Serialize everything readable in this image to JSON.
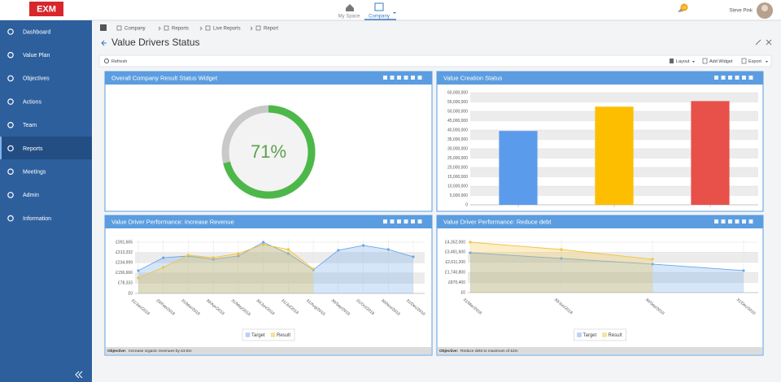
{
  "header": {
    "logo": "EXM",
    "nav": [
      "My Space",
      "Company"
    ],
    "badge": "10",
    "user": "Steve Pink"
  },
  "sidebar": {
    "items": [
      "Dashboard",
      "Value Plan",
      "Objectives",
      "Actions",
      "Team",
      "Reports",
      "Meetings",
      "Admin",
      "Information"
    ]
  },
  "breadcrumb": [
    "Company",
    "Reports",
    "Live Reports",
    "Report"
  ],
  "page_title": "Value Drivers Status",
  "toolbar": {
    "refresh": "Refresh",
    "layout": "Layout",
    "add_widget": "Add Widget",
    "export": "Export"
  },
  "widgets": [
    {
      "title": "Overall Company Result Status Widget",
      "chart": {
        "type": "donut",
        "values": [
          71
        ],
        "value_labels": [
          "71%"
        ],
        "color": "#4db84a",
        "rest_color": "#c9c9c9"
      }
    },
    {
      "title": "Value Creation Status",
      "chart": {
        "type": "bar",
        "categories": [
          null,
          null,
          null
        ],
        "values": [
          39500000,
          52500000,
          55500000
        ],
        "colors": [
          "#5b9bec",
          "#fdbe00",
          "#e8504a"
        ],
        "ylim": [
          0,
          60000000
        ],
        "yticks": [
          0,
          {
            "value": 5000000,
            "label": "5,000,000"
          },
          {
            "value": 10000000,
            "label": "10,000,000"
          },
          {
            "value": 15000000,
            "label": "15,000,000"
          },
          {
            "value": 20000000,
            "label": "20,000,000"
          },
          {
            "value": 25000000,
            "label": "25,000,000"
          },
          {
            "value": 30000000,
            "label": "30,000,000"
          },
          {
            "value": 35000000,
            "label": "35,000,000"
          },
          {
            "value": 40000000,
            "label": "40,000,000"
          },
          {
            "value": 45000000,
            "label": "45,000,000"
          },
          {
            "value": 50000000,
            "label": "50,000,000"
          },
          {
            "value": 55000000,
            "label": "55,000,000"
          },
          {
            "value": 60000000,
            "label": "60,000,000"
          }
        ],
        "grid": true
      }
    },
    {
      "title": "Value Driver Performance: Increase Revenue",
      "chart": {
        "type": "line",
        "categories": [
          "31/Jan/2018",
          "28/Feb/2018",
          "31/Mar/2018",
          "30/Apr/2018",
          "31/May/2018",
          "30/Jun/2018",
          "31/Jul/2018",
          "31/Aug/2018",
          "30/Sep/2018",
          "31/Oct/2018",
          "30/Nov/2018",
          "31/Dec/2018"
        ],
        "series": [
          {
            "name": "Target",
            "color": "#6aa6ea",
            "values": [
              174000,
              273000,
              286000,
              261000,
              286000,
              391000,
              305000,
              180000,
              330000,
              367000,
              336000,
              280000
            ]
          },
          {
            "name": "Result",
            "color": "#f2c33a",
            "values": [
              118000,
              199000,
              292000,
              274000,
              305000,
              373000,
              336000,
              187000,
              null,
              null,
              null,
              null
            ]
          }
        ],
        "ylim": [
          0,
          391665
        ],
        "yticks": [
          {
            "value": 0,
            "label": "£0"
          },
          {
            "value": 78333,
            "label": "£78,333"
          },
          {
            "value": 156666,
            "label": "£156,666"
          },
          {
            "value": 234999,
            "label": "£234,999"
          },
          {
            "value": 313332,
            "label": "£313,332"
          },
          {
            "value": 391665,
            "label": "£391,665"
          }
        ],
        "grid": true
      },
      "objective_label": "Objective:",
      "objective": "Increase organic revenues by £3.5m"
    },
    {
      "title": "Value Driver Performance: Reduce debt",
      "chart": {
        "type": "line",
        "categories": [
          "31/Mar/2018",
          "30/Jun/2018",
          "30/Sep/2018",
          "31/Dec/2018"
        ],
        "series": [
          {
            "name": "Target",
            "color": "#6aa6ea",
            "values": [
              3440000,
              2950000,
              2460000,
              1900000
            ]
          },
          {
            "name": "Result",
            "color": "#f2c33a",
            "values": [
              4352000,
              3720000,
              2880000,
              null
            ]
          }
        ],
        "ylim": [
          0,
          4352000
        ],
        "yticks": [
          {
            "value": 0,
            "label": "£0"
          },
          {
            "value": 870400,
            "label": "£870,400"
          },
          {
            "value": 1740800,
            "label": "£1,740,800"
          },
          {
            "value": 2611200,
            "label": "£2,611,200"
          },
          {
            "value": 3481600,
            "label": "£3,481,600"
          },
          {
            "value": 4352000,
            "label": "£4,352,000"
          }
        ],
        "grid": true
      },
      "objective_label": "Objective:",
      "objective": "Reduce debt to maximum of £2m"
    }
  ]
}
